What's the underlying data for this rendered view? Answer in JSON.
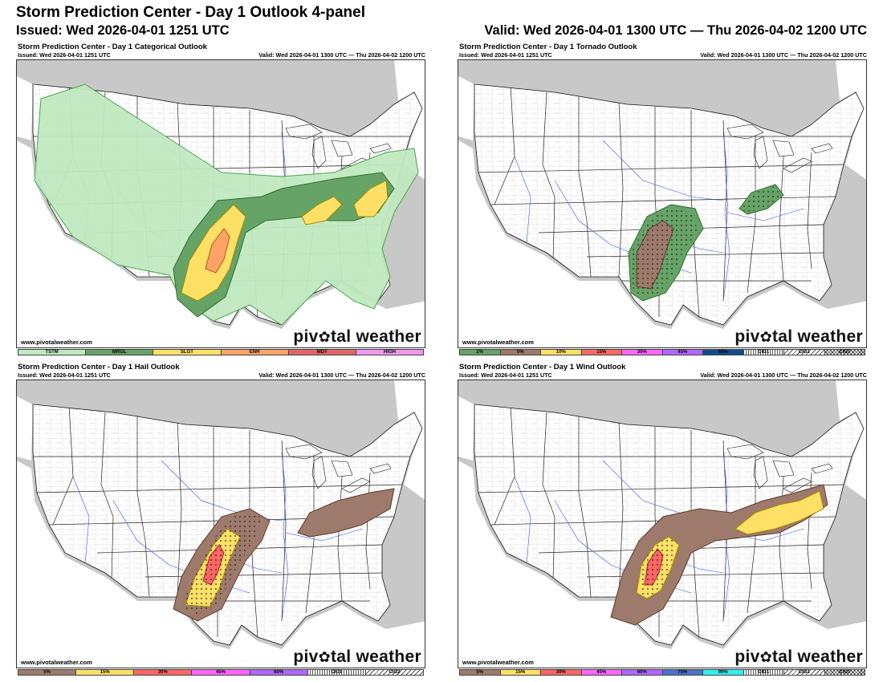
{
  "header": {
    "title": "Storm Prediction Center - Day 1 Outlook 4-panel",
    "issued": "Issued: Wed 2026-04-01 1251 UTC",
    "valid": "Valid: Wed 2026-04-01 1300 UTC — Thu 2026-04-02 1200 UTC"
  },
  "panels": [
    {
      "title": "Storm Prediction Center - Day 1 Categorical Outlook",
      "issued": "Issued: Wed 2026-04-01 1251 UTC",
      "valid": "Valid: Wed 2026-04-01 1300 UTC — Thu 2026-04-02 1200 UTC",
      "credit": "www.pivotalweather.com",
      "brand_left": "piv",
      "brand_right": "tal weather",
      "legend": [
        {
          "label": "TSTM",
          "color": "#c1e9c1"
        },
        {
          "label": "MRGL",
          "color": "#66a366"
        },
        {
          "label": "SLGT",
          "color": "#ffe066"
        },
        {
          "label": "ENH",
          "color": "#ffa366"
        },
        {
          "label": "MDT",
          "color": "#e06666"
        },
        {
          "label": "HIGH",
          "color": "#ee99ee"
        }
      ]
    },
    {
      "title": "Storm Prediction Center - Day 1 Tornado Outlook",
      "issued": "Issued: Wed 2026-04-01 1251 UTC",
      "valid": "Valid: Wed 2026-04-01 1300 UTC — Thu 2026-04-02 1200 UTC",
      "credit": "www.pivotalweather.com",
      "brand_left": "piv",
      "brand_right": "tal weather",
      "legend": [
        {
          "label": "2%",
          "color": "#66a366"
        },
        {
          "label": "5%",
          "color": "#9d7a6b"
        },
        {
          "label": "10%",
          "color": "#ffe066"
        },
        {
          "label": "15%",
          "color": "#ff6666"
        },
        {
          "label": "30%",
          "color": "#ff66ff"
        },
        {
          "label": "45%",
          "color": "#b266ff"
        },
        {
          "label": "60%",
          "color": "#104e8b"
        },
        {
          "label": "CIG1",
          "color": "#ffffff"
        },
        {
          "label": "CIG2",
          "color": "#ffffff"
        },
        {
          "label": "CIG3",
          "color": "#ffffff"
        }
      ]
    },
    {
      "title": "Storm Prediction Center - Day 1 Hail Outlook",
      "issued": "Issued: Wed 2026-04-01 1251 UTC",
      "valid": "Valid: Wed 2026-04-01 1300 UTC — Thu 2026-04-02 1200 UTC",
      "credit": "www.pivotalweather.com",
      "brand_left": "piv",
      "brand_right": "tal weather",
      "legend": [
        {
          "label": "5%",
          "color": "#9d7a6b"
        },
        {
          "label": "15%",
          "color": "#ffe066"
        },
        {
          "label": "30%",
          "color": "#ff6666"
        },
        {
          "label": "45%",
          "color": "#ff66ff"
        },
        {
          "label": "60%",
          "color": "#b266ff"
        },
        {
          "label": "CIG1",
          "color": "#ffffff"
        },
        {
          "label": "CIG2",
          "color": "#ffffff"
        }
      ]
    },
    {
      "title": "Storm Prediction Center - Day 1 Wind Outlook",
      "issued": "Issued: Wed 2026-04-01 1251 UTC",
      "valid": "Valid: Wed 2026-04-01 1300 UTC — Thu 2026-04-02 1200 UTC",
      "credit": "www.pivotalweather.com",
      "brand_left": "piv",
      "brand_right": "tal weather",
      "legend": [
        {
          "label": "5%",
          "color": "#9d7a6b"
        },
        {
          "label": "15%",
          "color": "#ffe066"
        },
        {
          "label": "30%",
          "color": "#ff6666"
        },
        {
          "label": "45%",
          "color": "#ff66ff"
        },
        {
          "label": "60%",
          "color": "#b266ff"
        },
        {
          "label": "75%",
          "color": "#4a72c8"
        },
        {
          "label": "90%",
          "color": "#33eeee"
        },
        {
          "label": "CIG1",
          "color": "#ffffff"
        },
        {
          "label": "CIG2",
          "color": "#ffffff"
        },
        {
          "label": "CIG3",
          "color": "#ffffff"
        }
      ]
    }
  ],
  "colors": {
    "land_outside": "#c8c8c8",
    "water": "#ffffff",
    "state_lines": "#222222",
    "county_lines": "#9a9a9a",
    "rivers": "#3355ee",
    "tstm": "#c1e9c1",
    "mrgl": "#66a366",
    "slgt": "#ffe066",
    "enh": "#ffa366",
    "prob5": "#9d7a6b",
    "prob15": "#ff6666"
  }
}
